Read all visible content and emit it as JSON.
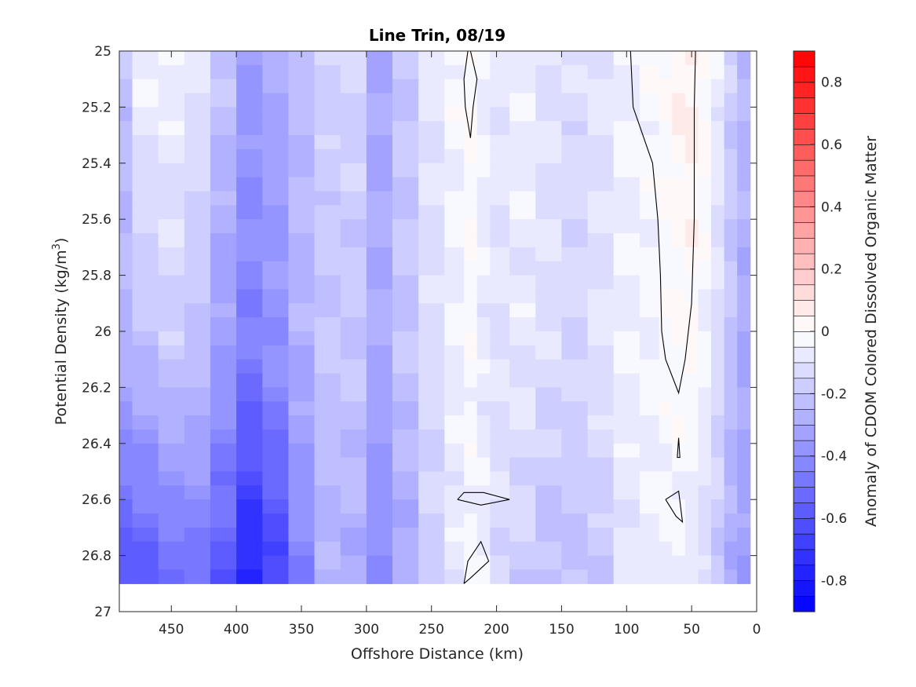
{
  "chart_data": {
    "type": "heatmap",
    "title": "Line Trin, 08/19",
    "xlabel": "Offshore Distance (km)",
    "ylabel_main": "Potential Density (kg/m",
    "ylabel_sup": "3",
    "ylabel_close": ")",
    "xlim": [
      490,
      0
    ],
    "x_reversed": true,
    "ylim": [
      25,
      27
    ],
    "y_reversed": true,
    "x_ticks": [
      450,
      400,
      350,
      300,
      250,
      200,
      150,
      100,
      50,
      0
    ],
    "x_tick_labels": [
      "450",
      "400",
      "350",
      "300",
      "250",
      "200",
      "150",
      "100",
      "50",
      "0"
    ],
    "y_ticks": [
      25,
      25.2,
      25.4,
      25.6,
      25.8,
      26,
      26.2,
      26.4,
      26.6,
      26.8,
      27
    ],
    "y_tick_labels": [
      "25",
      "25.2",
      "25.4",
      "25.6",
      "25.8",
      "26",
      "26.2",
      "26.4",
      "26.6",
      "26.8",
      "27"
    ],
    "data_y_max": 26.9,
    "colorbar": {
      "label": "Anomaly of CDOM Colored Dissolved Organic Matter",
      "range": [
        -0.9,
        0.9
      ],
      "step": 0.05,
      "ticks": [
        0.8,
        0.6,
        0.4,
        0.2,
        0,
        -0.2,
        -0.4,
        -0.6,
        -0.8
      ],
      "tick_labels": [
        "0.8",
        "0.6",
        "0.4",
        "0.2",
        "0",
        "-0.2",
        "-0.4",
        "-0.6",
        "-0.8"
      ],
      "low_color": "#0000ff",
      "mid_color": "#ffffff",
      "high_color": "#ff0000"
    },
    "grid_x_km": [
      490,
      470,
      450,
      430,
      410,
      390,
      370,
      350,
      330,
      310,
      290,
      270,
      250,
      230,
      220,
      210,
      200,
      180,
      160,
      140,
      120,
      100,
      80,
      70,
      60,
      50,
      40,
      30,
      20,
      10
    ],
    "columns": [
      {
        "x": 490,
        "top": -0.22,
        "mid": -0.26,
        "bottom": -0.62
      },
      {
        "x": 470,
        "top": -0.05,
        "mid": -0.22,
        "bottom": -0.6
      },
      {
        "x": 450,
        "top": -0.04,
        "mid": -0.18,
        "bottom": -0.55
      },
      {
        "x": 430,
        "top": -0.08,
        "mid": -0.22,
        "bottom": -0.5
      },
      {
        "x": 410,
        "top": -0.2,
        "mid": -0.35,
        "bottom": -0.6
      },
      {
        "x": 390,
        "top": -0.35,
        "mid": -0.45,
        "bottom": -0.8
      },
      {
        "x": 370,
        "top": -0.3,
        "mid": -0.38,
        "bottom": -0.68
      },
      {
        "x": 350,
        "top": -0.22,
        "mid": -0.28,
        "bottom": -0.45
      },
      {
        "x": 330,
        "top": -0.16,
        "mid": -0.2,
        "bottom": -0.28
      },
      {
        "x": 310,
        "top": -0.15,
        "mid": -0.2,
        "bottom": -0.3
      },
      {
        "x": 290,
        "top": -0.3,
        "mid": -0.3,
        "bottom": -0.42
      },
      {
        "x": 270,
        "top": -0.18,
        "mid": -0.2,
        "bottom": -0.32
      },
      {
        "x": 250,
        "top": -0.08,
        "mid": -0.12,
        "bottom": -0.18
      },
      {
        "x": 230,
        "top": -0.02,
        "mid": -0.06,
        "bottom": -0.08
      },
      {
        "x": 220,
        "top": 0.0,
        "mid": -0.02,
        "bottom": -0.04
      },
      {
        "x": 210,
        "top": -0.04,
        "mid": -0.08,
        "bottom": -0.06
      },
      {
        "x": 200,
        "top": -0.08,
        "mid": -0.1,
        "bottom": -0.14
      },
      {
        "x": 180,
        "top": -0.06,
        "mid": -0.08,
        "bottom": -0.18
      },
      {
        "x": 160,
        "top": -0.1,
        "mid": -0.12,
        "bottom": -0.24
      },
      {
        "x": 140,
        "top": -0.12,
        "mid": -0.14,
        "bottom": -0.22
      },
      {
        "x": 120,
        "top": -0.1,
        "mid": -0.1,
        "bottom": -0.2
      },
      {
        "x": 100,
        "top": -0.05,
        "mid": -0.06,
        "bottom": -0.1
      },
      {
        "x": 80,
        "top": -0.02,
        "mid": -0.04,
        "bottom": -0.06
      },
      {
        "x": 70,
        "top": 0.0,
        "mid": -0.02,
        "bottom": -0.04
      },
      {
        "x": 60,
        "top": 0.04,
        "mid": 0.0,
        "bottom": -0.06
      },
      {
        "x": 50,
        "top": 0.06,
        "mid": 0.01,
        "bottom": -0.1
      },
      {
        "x": 40,
        "top": 0.02,
        "mid": -0.04,
        "bottom": -0.14
      },
      {
        "x": 30,
        "top": -0.06,
        "mid": -0.12,
        "bottom": -0.2
      },
      {
        "x": 20,
        "top": -0.16,
        "mid": -0.22,
        "bottom": -0.3
      },
      {
        "x": 10,
        "top": -0.24,
        "mid": -0.3,
        "bottom": -0.34
      }
    ],
    "zero_contours": [
      [
        [
          220,
          25.0
        ],
        [
          215,
          25.1
        ],
        [
          218,
          25.2
        ],
        [
          220,
          25.31
        ],
        [
          224,
          25.2
        ],
        [
          225,
          25.1
        ],
        [
          222,
          25.0
        ]
      ],
      [
        [
          97,
          25.0
        ],
        [
          95,
          25.2
        ],
        [
          80,
          25.4
        ],
        [
          76,
          25.6
        ],
        [
          74,
          25.8
        ],
        [
          73,
          26.0
        ],
        [
          70,
          26.1
        ],
        [
          60,
          26.22
        ],
        [
          55,
          26.1
        ],
        [
          50,
          25.9
        ],
        [
          48,
          25.6
        ],
        [
          48,
          25.2
        ],
        [
          47,
          25.0
        ]
      ],
      [
        [
          230,
          26.6
        ],
        [
          212,
          26.62
        ],
        [
          190,
          26.6
        ],
        [
          210,
          26.575
        ],
        [
          225,
          26.575
        ],
        [
          230,
          26.6
        ]
      ],
      [
        [
          60,
          26.38
        ],
        [
          59,
          26.45
        ],
        [
          61,
          26.45
        ],
        [
          60,
          26.38
        ]
      ],
      [
        [
          70,
          26.6
        ],
        [
          60,
          26.57
        ],
        [
          57,
          26.68
        ],
        [
          62,
          26.66
        ],
        [
          70,
          26.6
        ]
      ],
      [
        [
          225,
          26.9
        ],
        [
          222,
          26.82
        ],
        [
          212,
          26.75
        ],
        [
          206,
          26.82
        ],
        [
          220,
          26.88
        ],
        [
          225,
          26.9
        ]
      ]
    ]
  }
}
